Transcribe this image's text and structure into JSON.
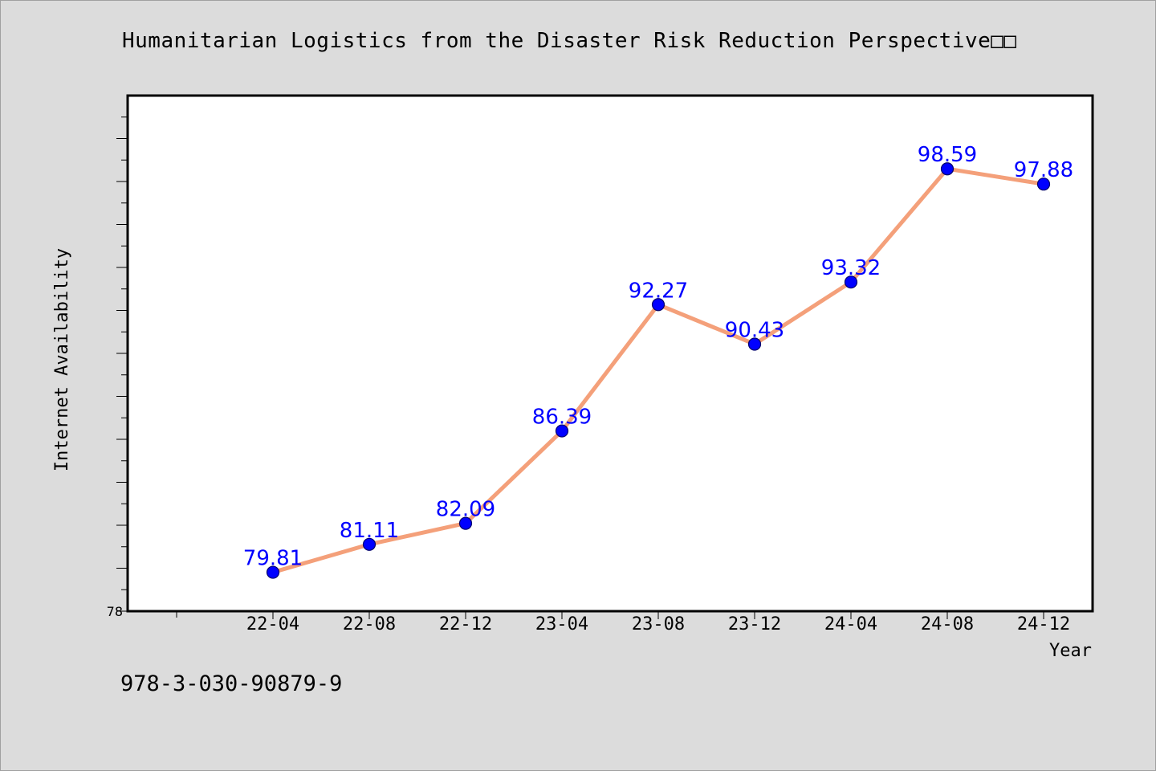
{
  "title": "Humanitarian Logistics from the Disaster Risk Reduction Perspective□□",
  "footer_text": "978-3-030-90879-9",
  "colors": {
    "background": "#dcdcdc",
    "plot_background": "#ffffff",
    "line": "#f4a07a",
    "marker": "#0000ff",
    "label": "#0000ff"
  },
  "chart_data": {
    "type": "line",
    "categories": [
      "22-04",
      "22-08",
      "22-12",
      "23-04",
      "23-08",
      "23-12",
      "24-04",
      "24-08",
      "24-12"
    ],
    "series": [
      {
        "values": [
          79.81,
          81.11,
          82.09,
          86.39,
          92.27,
          90.43,
          93.32,
          98.59,
          97.88
        ]
      }
    ],
    "xlabel": "Year",
    "ylabel": "Internet Availability",
    "ylim": [
      78,
      102
    ],
    "y_tick_labels": [
      "78"
    ],
    "grid": false,
    "data_labels": true
  }
}
